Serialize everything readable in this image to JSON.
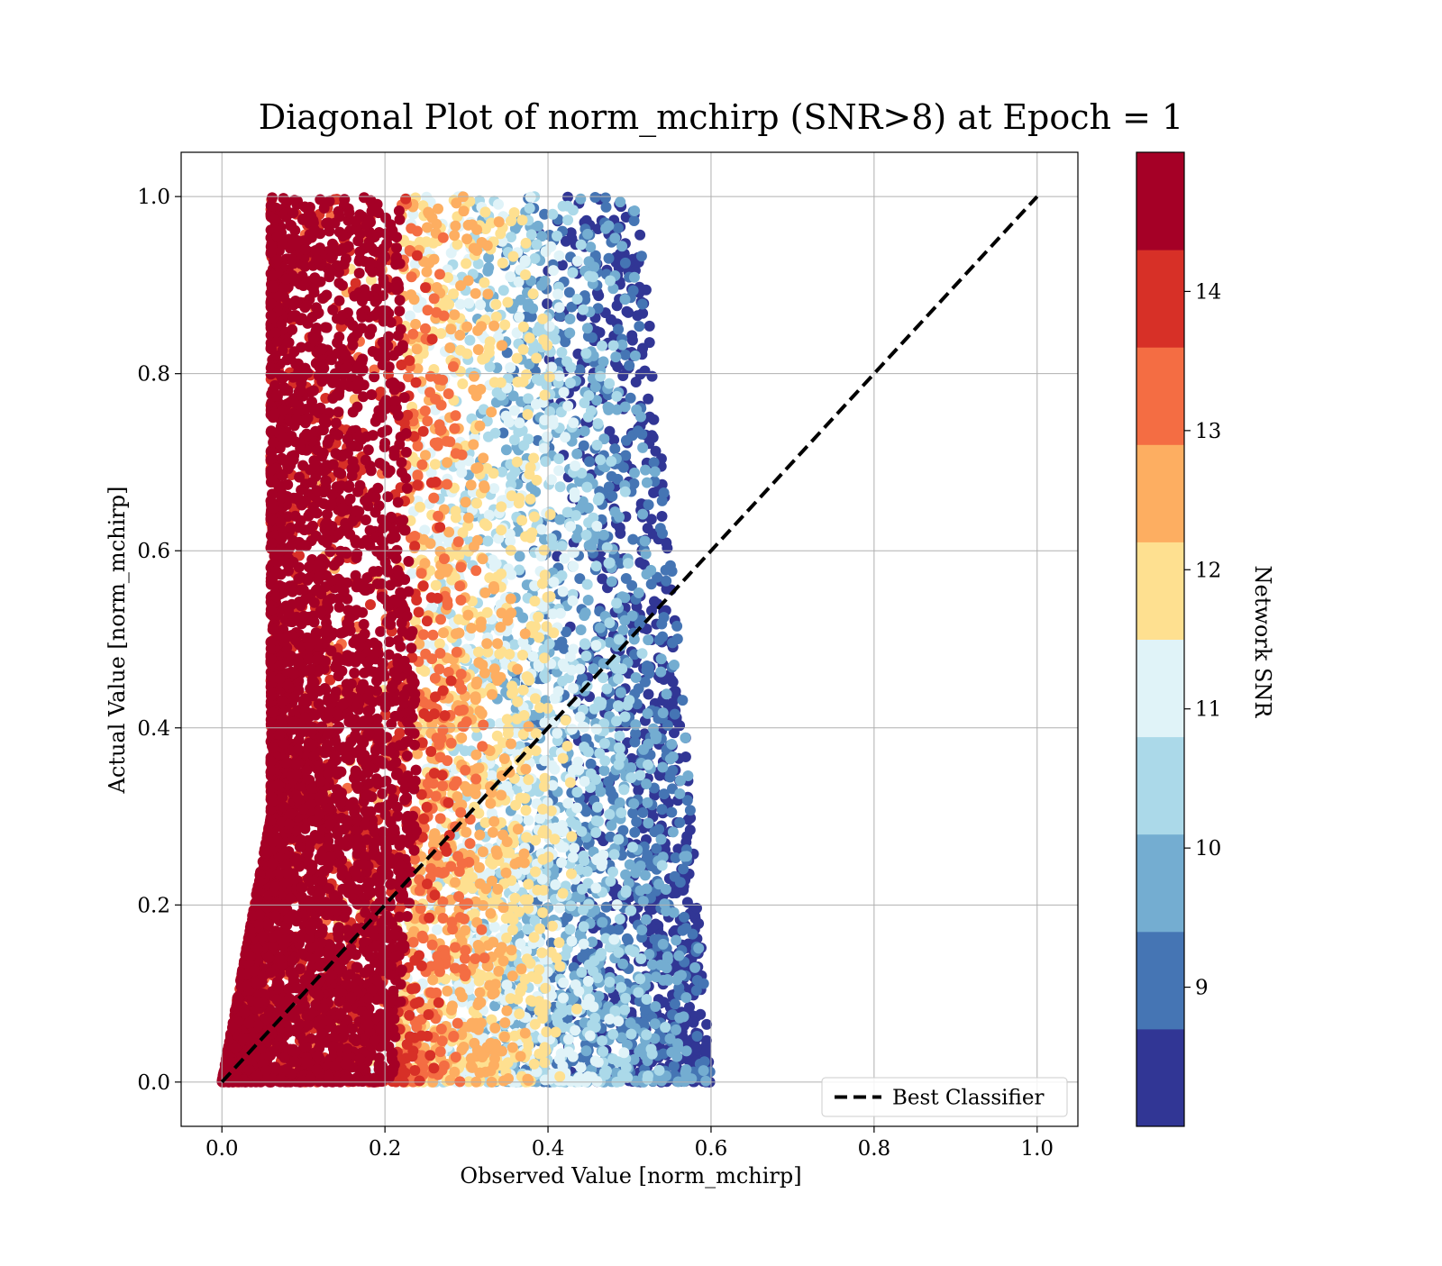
{
  "chart_data": {
    "type": "scatter",
    "title": "Diagonal Plot of norm_mchirp (SNR>8) at Epoch = 1",
    "xlabel": "Observed Value [norm_mchirp]",
    "ylabel": "Actual Value [norm_mchirp]",
    "xlim": [
      -0.05,
      1.05
    ],
    "ylim": [
      -0.05,
      1.05
    ],
    "xticks": [
      "0.0",
      "0.2",
      "0.4",
      "0.6",
      "0.8",
      "1.0"
    ],
    "yticks": [
      "0.0",
      "0.2",
      "0.4",
      "0.6",
      "0.8",
      "1.0"
    ],
    "grid": true,
    "legend": {
      "placement": "lower-right",
      "entries": [
        {
          "label": "Best Classifier",
          "style": "dashed-black"
        }
      ]
    },
    "reference_line": {
      "name": "Best Classifier",
      "x": [
        0.0,
        1.0
      ],
      "y": [
        0.0,
        1.0
      ],
      "color": "#000000",
      "dash": true
    },
    "colorbar": {
      "label": "Network SNR",
      "range": [
        8.0,
        15.0
      ],
      "ticks": [
        "9",
        "10",
        "11",
        "12",
        "13",
        "14"
      ],
      "tick_values": [
        9,
        10,
        11,
        12,
        13,
        14
      ],
      "colors": [
        "#313695",
        "#4575b4",
        "#74add1",
        "#abd9e9",
        "#e0f3f8",
        "#fee090",
        "#fdae61",
        "#f46d43",
        "#d73027",
        "#a50026"
      ]
    },
    "point_cloud": {
      "description_of_distribution": "observed roughly uniform from 0.02 to ~0.6 of actual; low observed → high SNR",
      "actual_range": [
        0.0,
        1.0
      ],
      "observed_min": [
        0.0,
        0.06
      ],
      "observed_max_at_actual": [
        [
          0.0,
          0.6
        ],
        [
          0.5,
          0.56
        ],
        [
          1.0,
          0.51
        ]
      ],
      "density_sample_count": 9000
    }
  }
}
